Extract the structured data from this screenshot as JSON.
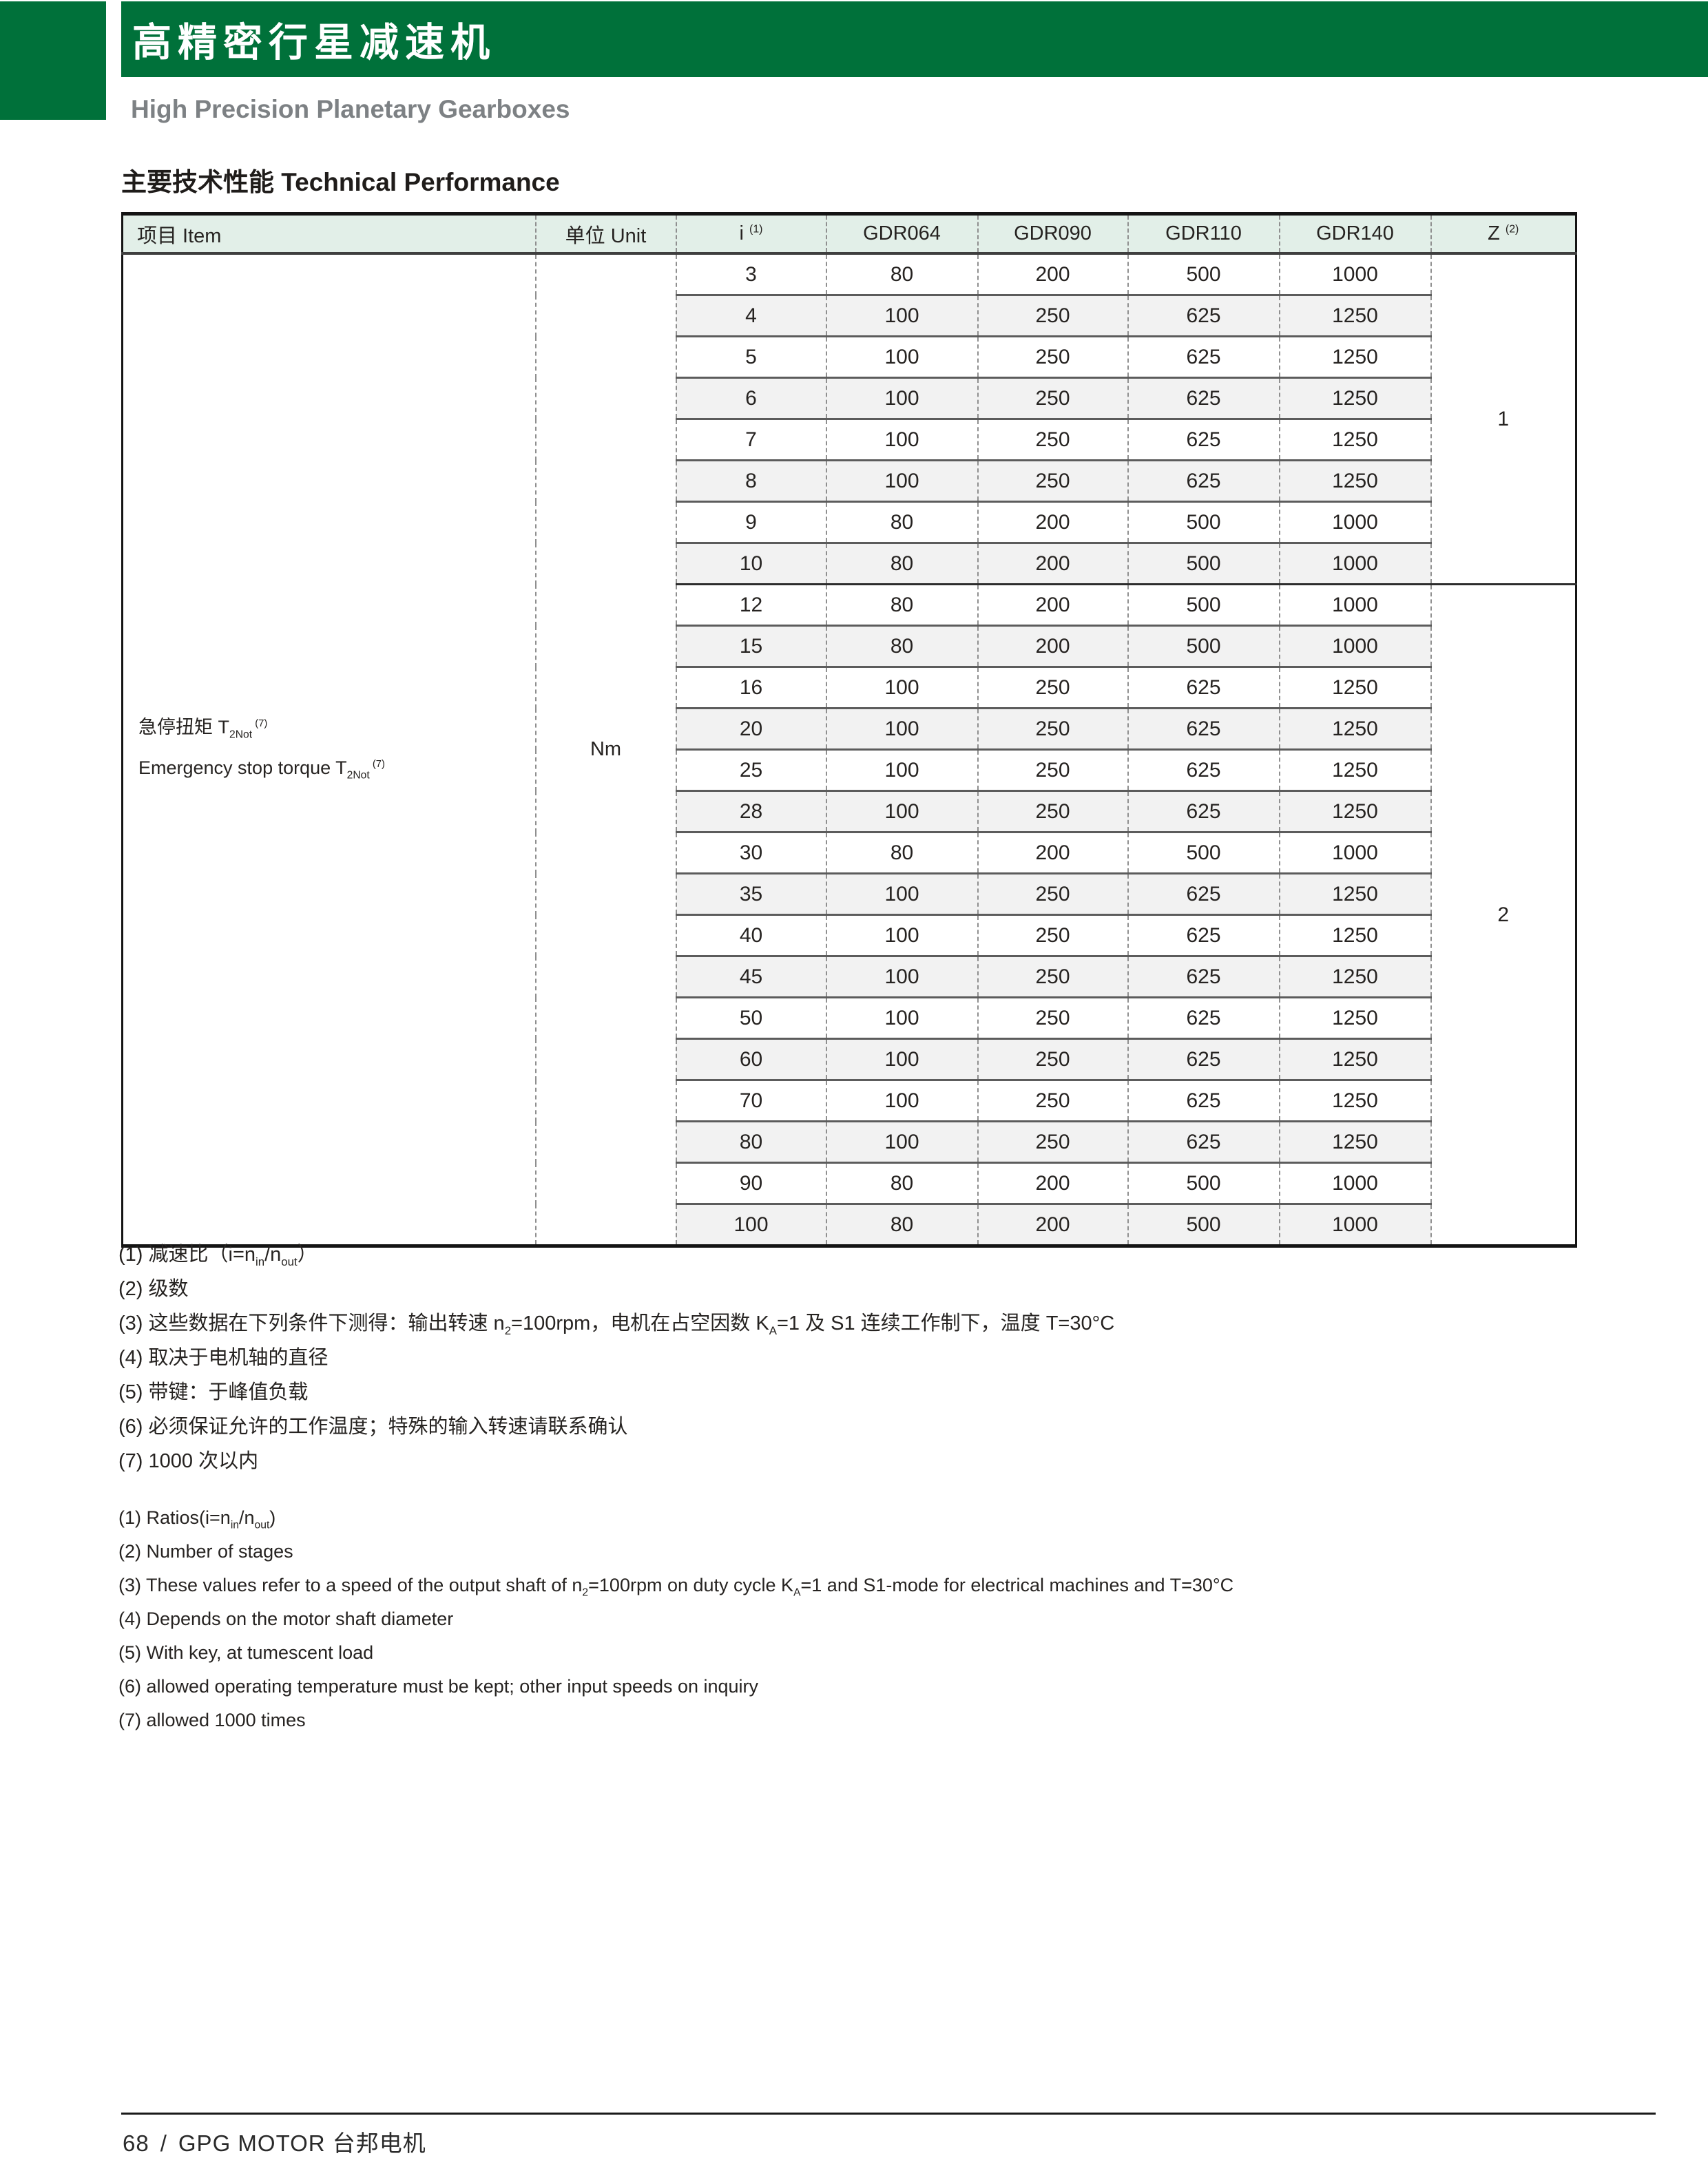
{
  "header": {
    "title": "高精密行星减速机",
    "subtitle": "High Precision Planetary Gearboxes"
  },
  "section": {
    "title": "主要技术性能 Technical Performance"
  },
  "table": {
    "headers": {
      "item": "项目 Item",
      "unit": "单位 Unit",
      "ratio_base": "i",
      "ratio_sup": "(1)",
      "models": [
        "GDR064",
        "GDR090",
        "GDR110",
        "GDR140"
      ],
      "stages_base": "Z",
      "stages_sup": "(2)"
    },
    "item_cell": {
      "line_cn": "急停扭矩 T",
      "line_en": "Emergency stop torque T",
      "sub": "2Not",
      "sup": "(7)"
    },
    "unit": "Nm",
    "sections": [
      {
        "z": "1",
        "rows": [
          {
            "i": "3",
            "values": [
              "80",
              "200",
              "500",
              "1000"
            ]
          },
          {
            "i": "4",
            "values": [
              "100",
              "250",
              "625",
              "1250"
            ]
          },
          {
            "i": "5",
            "values": [
              "100",
              "250",
              "625",
              "1250"
            ]
          },
          {
            "i": "6",
            "values": [
              "100",
              "250",
              "625",
              "1250"
            ]
          },
          {
            "i": "7",
            "values": [
              "100",
              "250",
              "625",
              "1250"
            ]
          },
          {
            "i": "8",
            "values": [
              "100",
              "250",
              "625",
              "1250"
            ]
          },
          {
            "i": "9",
            "values": [
              "80",
              "200",
              "500",
              "1000"
            ]
          },
          {
            "i": "10",
            "values": [
              "80",
              "200",
              "500",
              "1000"
            ]
          }
        ]
      },
      {
        "z": "2",
        "rows": [
          {
            "i": "12",
            "values": [
              "80",
              "200",
              "500",
              "1000"
            ]
          },
          {
            "i": "15",
            "values": [
              "80",
              "200",
              "500",
              "1000"
            ]
          },
          {
            "i": "16",
            "values": [
              "100",
              "250",
              "625",
              "1250"
            ]
          },
          {
            "i": "20",
            "values": [
              "100",
              "250",
              "625",
              "1250"
            ]
          },
          {
            "i": "25",
            "values": [
              "100",
              "250",
              "625",
              "1250"
            ]
          },
          {
            "i": "28",
            "values": [
              "100",
              "250",
              "625",
              "1250"
            ]
          },
          {
            "i": "30",
            "values": [
              "80",
              "200",
              "500",
              "1000"
            ]
          },
          {
            "i": "35",
            "values": [
              "100",
              "250",
              "625",
              "1250"
            ]
          },
          {
            "i": "40",
            "values": [
              "100",
              "250",
              "625",
              "1250"
            ]
          },
          {
            "i": "45",
            "values": [
              "100",
              "250",
              "625",
              "1250"
            ]
          },
          {
            "i": "50",
            "values": [
              "100",
              "250",
              "625",
              "1250"
            ]
          },
          {
            "i": "60",
            "values": [
              "100",
              "250",
              "625",
              "1250"
            ]
          },
          {
            "i": "70",
            "values": [
              "100",
              "250",
              "625",
              "1250"
            ]
          },
          {
            "i": "80",
            "values": [
              "100",
              "250",
              "625",
              "1250"
            ]
          },
          {
            "i": "90",
            "values": [
              "80",
              "200",
              "500",
              "1000"
            ]
          },
          {
            "i": "100",
            "values": [
              "80",
              "200",
              "500",
              "1000"
            ]
          }
        ]
      }
    ]
  },
  "footnotes_cn": [
    [
      {
        "t": "(1) 减速比（i=n"
      },
      {
        "t": "in",
        "s": "sub"
      },
      {
        "t": "/n"
      },
      {
        "t": "out",
        "s": "sub"
      },
      {
        "t": "）"
      }
    ],
    [
      {
        "t": "(2) 级数"
      }
    ],
    [
      {
        "t": "(3) 这些数据在下列条件下测得：输出转速 n"
      },
      {
        "t": "2",
        "s": "sub"
      },
      {
        "t": "=100rpm，电机在占空因数 K"
      },
      {
        "t": "A",
        "s": "sub"
      },
      {
        "t": "=1 及 S1 连续工作制下，温度 T=30°C"
      }
    ],
    [
      {
        "t": "(4) 取决于电机轴的直径"
      }
    ],
    [
      {
        "t": "(5) 带键：于峰值负载"
      }
    ],
    [
      {
        "t": "(6) 必须保证允许的工作温度；特殊的输入转速请联系确认"
      }
    ],
    [
      {
        "t": "(7) 1000 次以内"
      }
    ]
  ],
  "footnotes_en": [
    [
      {
        "t": "(1) Ratios(i=n"
      },
      {
        "t": "in",
        "s": "sub"
      },
      {
        "t": "/n"
      },
      {
        "t": "out",
        "s": "sub"
      },
      {
        "t": ")"
      }
    ],
    [
      {
        "t": "(2) Number of stages"
      }
    ],
    [
      {
        "t": "(3) These values refer to a speed of the output shaft of n"
      },
      {
        "t": "2",
        "s": "sub"
      },
      {
        "t": "=100rpm on duty cycle K"
      },
      {
        "t": "A",
        "s": "sub"
      },
      {
        "t": "=1 and S1-mode for electrical machines and T=30°C"
      }
    ],
    [
      {
        "t": "(4) Depends on the motor shaft diameter"
      }
    ],
    [
      {
        "t": "(5) With key, at tumescent load"
      }
    ],
    [
      {
        "t": "(6) allowed operating temperature must be kept; other input speeds on inquiry"
      }
    ],
    [
      {
        "t": "(7) allowed 1000 times"
      }
    ]
  ],
  "footer": {
    "page_number": "68",
    "separator": "/",
    "brand": "GPG MOTOR 台邦电机"
  },
  "colors": {
    "brand_green": "#00713A",
    "table_header_mint": "#E2EFE8",
    "row_stripe_gray": "#F2F2F2",
    "subtitle_gray": "#7D8184"
  }
}
